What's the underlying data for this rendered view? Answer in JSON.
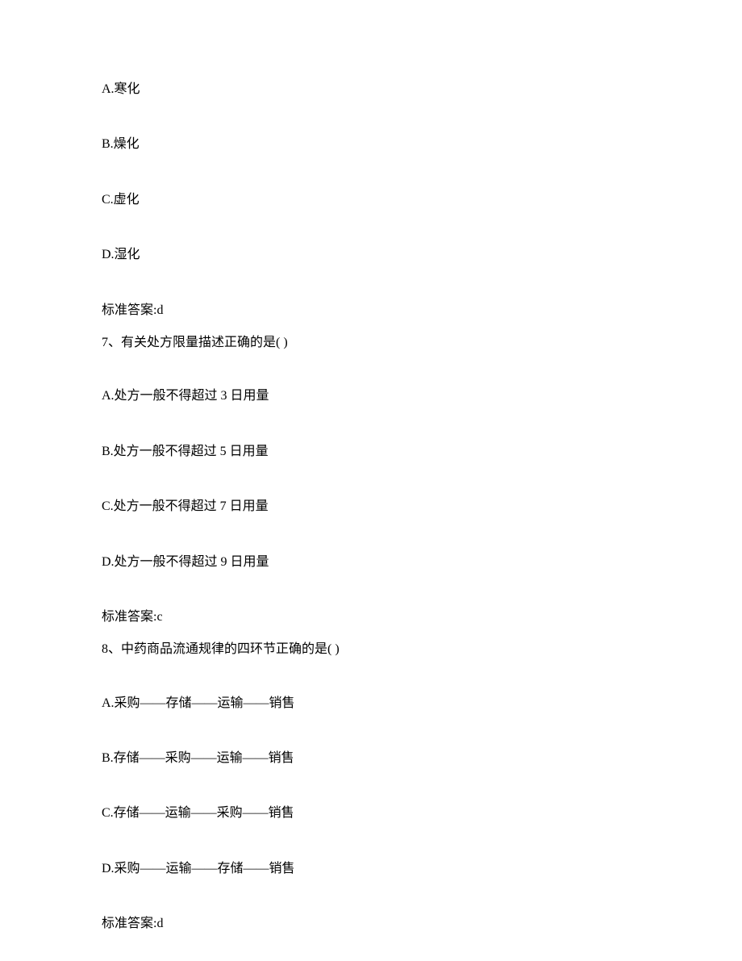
{
  "q6": {
    "optionA": "A.寒化",
    "optionB": "B.燥化",
    "optionC": "C.虚化",
    "optionD": "D.湿化",
    "answer": "标准答案:d"
  },
  "q7": {
    "question": "7、有关处方限量描述正确的是( )",
    "optionA": "A.处方一般不得超过 3 日用量",
    "optionB": "B.处方一般不得超过 5 日用量",
    "optionC": "C.处方一般不得超过 7 日用量",
    "optionD": "D.处方一般不得超过 9 日用量",
    "answer": "标准答案:c"
  },
  "q8": {
    "question": "8、中药商品流通规律的四环节正确的是( )",
    "optionA": "A.采购——存储——运输——销售",
    "optionB": "B.存储——采购——运输——销售",
    "optionC": "C.存储——运输——采购——销售",
    "optionD": "D.采购——运输——存储——销售",
    "answer": "标准答案:d"
  }
}
